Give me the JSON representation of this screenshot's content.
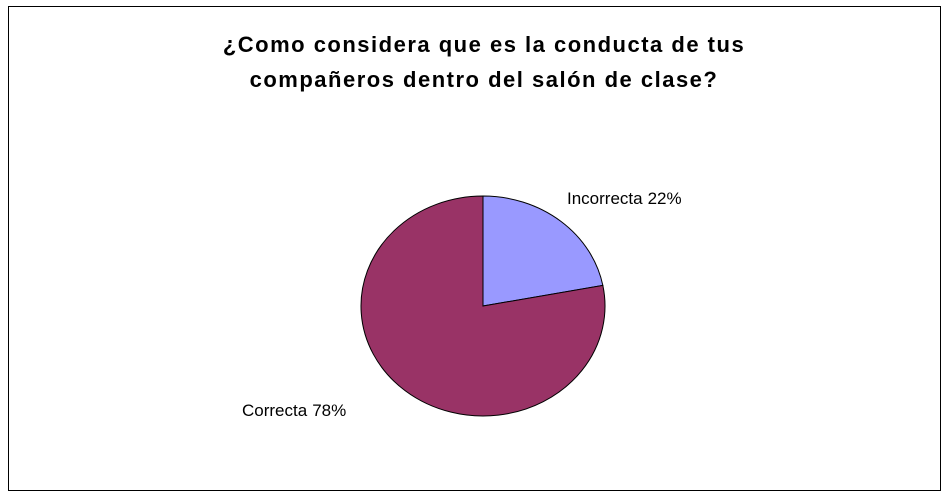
{
  "chart_data": {
    "type": "pie",
    "title": [
      "¿Como considera que es la conducta de tus",
      "compañeros dentro del salón de clase?"
    ],
    "categories": [
      "Incorrecta",
      "Correcta"
    ],
    "values": [
      22,
      78
    ],
    "value_labels": [
      "22%",
      "78%"
    ],
    "colors": [
      "#9999ff",
      "#993366"
    ]
  }
}
